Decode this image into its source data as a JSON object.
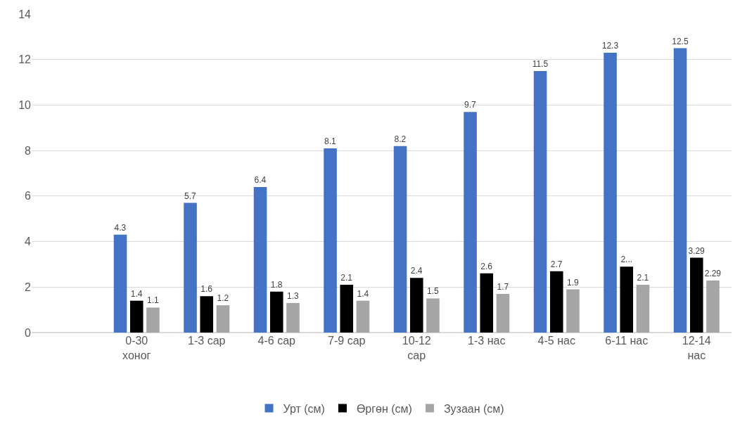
{
  "chart_data": {
    "type": "bar",
    "categories": [
      null,
      "0-30 хоног",
      "1-3 сар",
      "4-6 сар",
      "7-9 сар",
      "10-12 сар",
      "1-3 нас",
      "4-5 нас",
      "6-11 нас",
      "12-14 нас"
    ],
    "series": [
      {
        "name": "Урт (см)",
        "color": "#4472c4",
        "values": [
          null,
          4.3,
          5.7,
          6.4,
          8.1,
          8.2,
          9.7,
          11.5,
          12.3,
          12.5
        ],
        "value_labels": [
          null,
          "4.3",
          "5.7",
          "6.4",
          "8.1",
          "8.2",
          "9.7",
          "11.5",
          "12.3",
          "12.5"
        ]
      },
      {
        "name": "Өргөн (см)",
        "color": "#000000",
        "values": [
          null,
          1.4,
          1.6,
          1.8,
          2.1,
          2.4,
          2.6,
          2.7,
          2.9,
          3.29
        ],
        "value_labels": [
          null,
          "1.4",
          "1.6",
          "1.8",
          "2.1",
          "2.4",
          "2.6",
          "2.7",
          "2...",
          "3.29"
        ]
      },
      {
        "name": "Зузаан (см)",
        "color": "#a5a5a5",
        "values": [
          null,
          1.1,
          1.2,
          1.3,
          1.4,
          1.5,
          1.7,
          1.9,
          2.1,
          2.29
        ],
        "value_labels": [
          null,
          "1.1",
          "1.2",
          "1.3",
          "1.4",
          "1.5",
          "1.7",
          "1.9",
          "2.1",
          "2.29"
        ]
      }
    ],
    "ylim": [
      0,
      14
    ],
    "yticks": [
      0,
      2,
      4,
      6,
      8,
      10,
      12,
      14
    ],
    "grid": "y",
    "legend": "bottom"
  }
}
